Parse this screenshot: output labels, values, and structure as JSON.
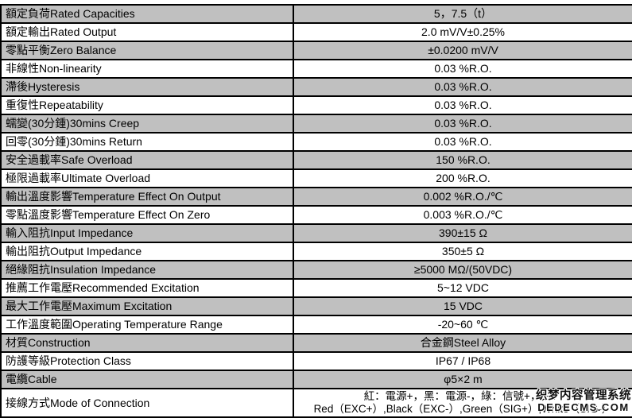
{
  "table": {
    "columns": [
      "parameter",
      "value"
    ],
    "rows": [
      {
        "label": "額定負荷Rated Capacities",
        "value": "5，7.5（t）",
        "shaded": true
      },
      {
        "label": "額定輸出Rated Output",
        "value": "2.0 mV/V±0.25%",
        "shaded": false
      },
      {
        "label": "零點平衡Zero Balance",
        "value": "±0.0200 mV/V",
        "shaded": true
      },
      {
        "label": "非線性Non-linearity",
        "value": "0.03 %R.O.",
        "shaded": false
      },
      {
        "label": "滯後Hysteresis",
        "value": "0.03 %R.O.",
        "shaded": true
      },
      {
        "label": "重復性Repeatability",
        "value": "0.03 %R.O.",
        "shaded": false
      },
      {
        "label": "蠕變(30分鍾)30mins Creep",
        "value": "0.03 %R.O.",
        "shaded": true
      },
      {
        "label": "回零(30分鍾)30mins Return",
        "value": "0.03 %R.O.",
        "shaded": false
      },
      {
        "label": "安全過載率Safe Overload",
        "value": "150 %R.O.",
        "shaded": true
      },
      {
        "label": "極限過載率Ultimate Overload",
        "value": "200 %R.O.",
        "shaded": false
      },
      {
        "label": "輸出溫度影響Temperature Effect On Output",
        "value": "0.002 %R.O./℃",
        "shaded": true
      },
      {
        "label": "零點溫度影響Temperature Effect On Zero",
        "value": "0.003 %R.O./℃",
        "shaded": false
      },
      {
        "label": "輸入阻抗Input Impedance",
        "value": "390±15 Ω",
        "shaded": true
      },
      {
        "label": "輸出阻抗Output Impedance",
        "value": "350±5 Ω",
        "shaded": false
      },
      {
        "label": "絕緣阻抗Insulation Impedance",
        "value": "≥5000 MΩ/(50VDC)",
        "shaded": true
      },
      {
        "label": "推薦工作電壓Recommended Excitation",
        "value": "5~12 VDC",
        "shaded": false
      },
      {
        "label": "最大工作電壓Maximum Excitation",
        "value": "15 VDC",
        "shaded": true
      },
      {
        "label": "工作溫度範圍Operating Temperature Range",
        "value": "-20~60 ℃",
        "shaded": false
      },
      {
        "label": "材質Construction",
        "value": "合金鋼Steel Alloy",
        "shaded": true
      },
      {
        "label": "防護等級Protection Class",
        "value": "IP67 / IP68",
        "shaded": false
      },
      {
        "label": "電纜Cable",
        "value": "φ5×2 m",
        "shaded": true
      },
      {
        "label": "接線方式Mode of Connection",
        "value_lines": [
          "紅：電源+，黑：電源-，綠：信號+，白：",
          "Red（EXC+）,Black（EXC-）,Green（SIG+）,White（SIG-）"
        ],
        "shaded": false,
        "tall": true
      }
    ],
    "colors": {
      "shaded_row": "#c0c0c0",
      "border": "#000000",
      "text": "#000000"
    }
  },
  "watermark": {
    "line1": "织梦内容管理系统",
    "line2": "DEDECMS.COM"
  }
}
